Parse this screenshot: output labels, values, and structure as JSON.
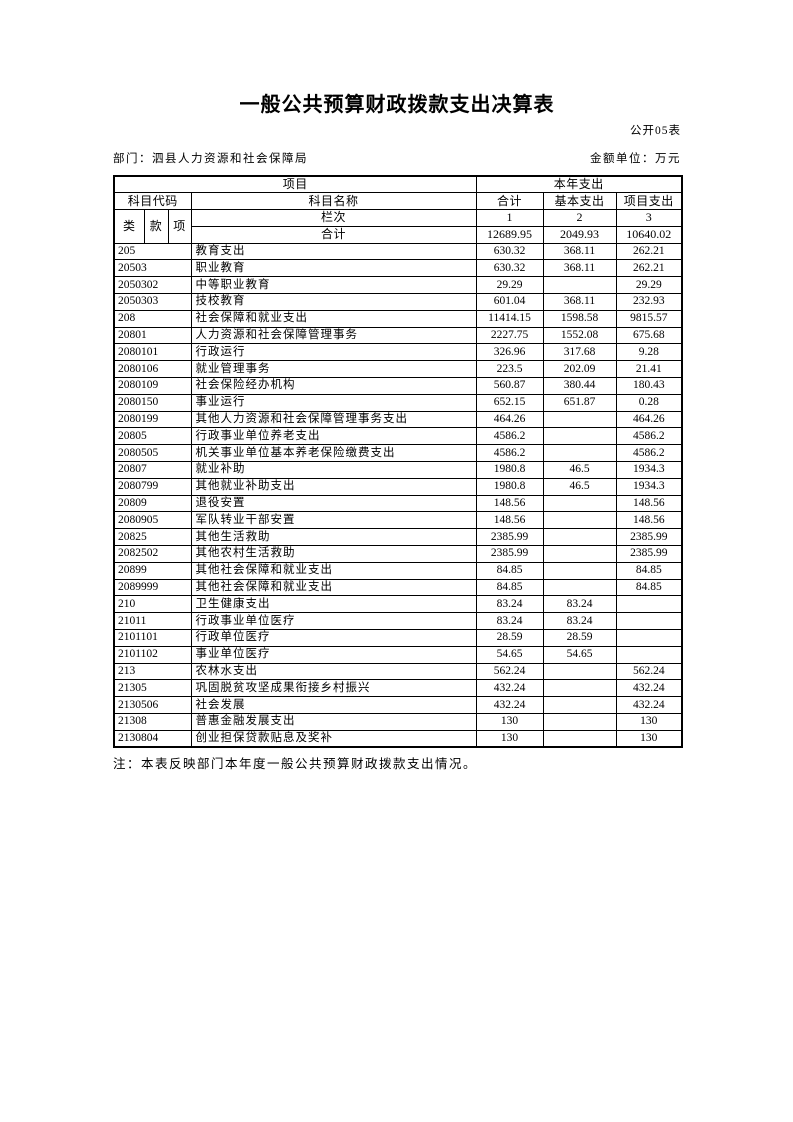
{
  "page": {
    "title": "一般公共预算财政拨款支出决算表",
    "table_no": "公开05表",
    "department": "部门：泗县人力资源和社会保障局",
    "unit": "金额单位：万元",
    "note": "注：本表反映部门本年度一般公共预算财政拨款支出情况。",
    "colors": {
      "ink": "#000000",
      "background": "#ffffff"
    }
  },
  "table": {
    "header": {
      "project": "项目",
      "current_year_expense": "本年支出",
      "subject_code": "科目代码",
      "subject_name": "科目名称",
      "total": "合计",
      "basic_expense": "基本支出",
      "project_expense": "项目支出",
      "class": "类",
      "section": "款",
      "item": "项",
      "column_index_label": "栏次",
      "col_nums": [
        "1",
        "2",
        "3"
      ],
      "grand_total_label": "合计",
      "grand_total_values": [
        "12689.95",
        "2049.93",
        "10640.02"
      ]
    },
    "rows": [
      {
        "code": "205",
        "name": "教育支出",
        "total": "630.32",
        "basic": "368.11",
        "project": "262.21"
      },
      {
        "code": "20503",
        "name": "职业教育",
        "total": "630.32",
        "basic": "368.11",
        "project": "262.21"
      },
      {
        "code": "2050302",
        "name": "中等职业教育",
        "total": "29.29",
        "basic": "",
        "project": "29.29"
      },
      {
        "code": "2050303",
        "name": "技校教育",
        "total": "601.04",
        "basic": "368.11",
        "project": "232.93"
      },
      {
        "code": "208",
        "name": "社会保障和就业支出",
        "total": "11414.15",
        "basic": "1598.58",
        "project": "9815.57"
      },
      {
        "code": "20801",
        "name": "人力资源和社会保障管理事务",
        "total": "2227.75",
        "basic": "1552.08",
        "project": "675.68"
      },
      {
        "code": "2080101",
        "name": "行政运行",
        "total": "326.96",
        "basic": "317.68",
        "project": "9.28"
      },
      {
        "code": "2080106",
        "name": "就业管理事务",
        "total": "223.5",
        "basic": "202.09",
        "project": "21.41"
      },
      {
        "code": "2080109",
        "name": "社会保险经办机构",
        "total": "560.87",
        "basic": "380.44",
        "project": "180.43"
      },
      {
        "code": "2080150",
        "name": "事业运行",
        "total": "652.15",
        "basic": "651.87",
        "project": "0.28"
      },
      {
        "code": "2080199",
        "name": "其他人力资源和社会保障管理事务支出",
        "total": "464.26",
        "basic": "",
        "project": "464.26"
      },
      {
        "code": "20805",
        "name": "行政事业单位养老支出",
        "total": "4586.2",
        "basic": "",
        "project": "4586.2"
      },
      {
        "code": "2080505",
        "name": "机关事业单位基本养老保险缴费支出",
        "total": "4586.2",
        "basic": "",
        "project": "4586.2"
      },
      {
        "code": "20807",
        "name": "就业补助",
        "total": "1980.8",
        "basic": "46.5",
        "project": "1934.3"
      },
      {
        "code": "2080799",
        "name": "其他就业补助支出",
        "total": "1980.8",
        "basic": "46.5",
        "project": "1934.3"
      },
      {
        "code": "20809",
        "name": "退役安置",
        "total": "148.56",
        "basic": "",
        "project": "148.56"
      },
      {
        "code": "2080905",
        "name": "军队转业干部安置",
        "total": "148.56",
        "basic": "",
        "project": "148.56"
      },
      {
        "code": "20825",
        "name": "其他生活救助",
        "total": "2385.99",
        "basic": "",
        "project": "2385.99"
      },
      {
        "code": "2082502",
        "name": "其他农村生活救助",
        "total": "2385.99",
        "basic": "",
        "project": "2385.99"
      },
      {
        "code": "20899",
        "name": "其他社会保障和就业支出",
        "total": "84.85",
        "basic": "",
        "project": "84.85"
      },
      {
        "code": "2089999",
        "name": "其他社会保障和就业支出",
        "total": "84.85",
        "basic": "",
        "project": "84.85"
      },
      {
        "code": "210",
        "name": "卫生健康支出",
        "total": "83.24",
        "basic": "83.24",
        "project": ""
      },
      {
        "code": "21011",
        "name": "行政事业单位医疗",
        "total": "83.24",
        "basic": "83.24",
        "project": ""
      },
      {
        "code": "2101101",
        "name": "行政单位医疗",
        "total": "28.59",
        "basic": "28.59",
        "project": ""
      },
      {
        "code": "2101102",
        "name": "事业单位医疗",
        "total": "54.65",
        "basic": "54.65",
        "project": ""
      },
      {
        "code": "213",
        "name": "农林水支出",
        "total": "562.24",
        "basic": "",
        "project": "562.24"
      },
      {
        "code": "21305",
        "name": "巩固脱贫攻坚成果衔接乡村振兴",
        "total": "432.24",
        "basic": "",
        "project": "432.24"
      },
      {
        "code": "2130506",
        "name": "社会发展",
        "total": "432.24",
        "basic": "",
        "project": "432.24"
      },
      {
        "code": "21308",
        "name": "普惠金融发展支出",
        "total": "130",
        "basic": "",
        "project": "130"
      },
      {
        "code": "2130804",
        "name": "创业担保贷款贴息及奖补",
        "total": "130",
        "basic": "",
        "project": "130"
      }
    ]
  }
}
